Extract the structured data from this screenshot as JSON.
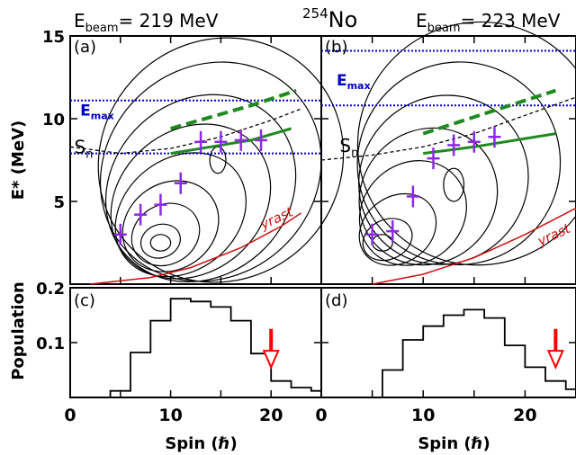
{
  "figure": {
    "title_sup": "254",
    "title_main": "No",
    "beam_left": {
      "prefix": "E",
      "sub": "beam",
      "value": "= 219 MeV"
    },
    "beam_right": {
      "prefix": "E",
      "sub": "beam",
      "value": "= 223 MeV"
    }
  },
  "colors": {
    "contour": "#000000",
    "cross": "#8a2be2",
    "green": "#1f8a1f",
    "blue": "#0000cc",
    "yrast": "#cc1111",
    "arrow": "#ff0000"
  },
  "chart_data": [
    {
      "panel": "(a)",
      "type": "contour",
      "ylabel": "E* (MeV)",
      "xlim": [
        0,
        25
      ],
      "ylim": [
        0,
        15
      ],
      "yticks": [
        "5",
        "10",
        "15"
      ],
      "emax_label": "E",
      "emax_sub": "max",
      "sn_label": "S",
      "sn_sub": "n",
      "yrast_label": "yrast",
      "emax_lines": [
        11.1,
        7.9
      ],
      "points": [
        [
          5,
          3.0
        ],
        [
          7,
          4.2
        ],
        [
          9,
          4.8
        ],
        [
          11,
          6.1
        ],
        [
          13,
          8.6
        ],
        [
          15,
          8.6
        ],
        [
          17,
          8.7
        ],
        [
          19,
          8.7
        ]
      ],
      "sn_curve": [
        [
          0,
          8.3
        ],
        [
          5,
          7.9
        ],
        [
          10,
          8.2
        ],
        [
          15,
          8.9
        ],
        [
          20,
          9.9
        ],
        [
          23,
          10.6
        ]
      ],
      "yrast_curve": [
        [
          2,
          0
        ],
        [
          8,
          0.4
        ],
        [
          12,
          1.0
        ],
        [
          17,
          2.2
        ],
        [
          21,
          3.5
        ],
        [
          23,
          4.3
        ]
      ],
      "green_solid": [
        [
          10,
          7.9
        ],
        [
          14,
          8.3
        ],
        [
          18,
          8.7
        ],
        [
          22,
          9.4
        ]
      ],
      "green_dashed": [
        [
          10,
          9.4
        ],
        [
          14,
          10.1
        ],
        [
          18,
          10.8
        ],
        [
          22.5,
          11.7
        ]
      ]
    },
    {
      "panel": "(b)",
      "type": "contour",
      "xlim": [
        0,
        25
      ],
      "ylim": [
        0,
        15
      ],
      "emax_label": "E",
      "emax_sub": "max",
      "sn_label": "S",
      "sn_sub": "n",
      "yrast_label": "yrast",
      "emax_lines": [
        14.1,
        10.8
      ],
      "points": [
        [
          5,
          3.0
        ],
        [
          7,
          3.2
        ],
        [
          9,
          5.3
        ],
        [
          11,
          7.6
        ],
        [
          13,
          8.4
        ],
        [
          15,
          8.6
        ],
        [
          17,
          8.9
        ]
      ],
      "sn_curve": [
        [
          0,
          7.5
        ],
        [
          5,
          7.8
        ],
        [
          10,
          8.3
        ],
        [
          15,
          9.1
        ],
        [
          20,
          10.2
        ],
        [
          25,
          11.3
        ]
      ],
      "yrast_curve": [
        [
          5,
          0
        ],
        [
          10,
          0.6
        ],
        [
          15,
          1.6
        ],
        [
          20,
          3.0
        ],
        [
          25,
          4.6
        ]
      ],
      "green_solid": [
        [
          10,
          7.9
        ],
        [
          15,
          8.3
        ],
        [
          20,
          8.8
        ],
        [
          23,
          9.1
        ]
      ],
      "green_dashed": [
        [
          10,
          9.1
        ],
        [
          14,
          9.9
        ],
        [
          18,
          10.7
        ],
        [
          23,
          11.7
        ]
      ]
    },
    {
      "panel": "(c)",
      "type": "bar",
      "ylabel": "Population",
      "xlabel": "Spin (ℏ)",
      "xlim": [
        0,
        25
      ],
      "ylim": [
        0,
        0.2
      ],
      "yticks": [
        "0.1",
        "0.2"
      ],
      "xticks": [
        "0",
        "10",
        "20"
      ],
      "bin_edges": [
        0,
        2,
        4,
        6,
        8,
        10,
        12,
        14,
        16,
        18,
        20,
        22,
        24,
        26
      ],
      "values": [
        0.0,
        0.0,
        0.012,
        0.082,
        0.14,
        0.18,
        0.175,
        0.165,
        0.14,
        0.08,
        0.03,
        0.018,
        0.012
      ],
      "arrow_at": 20
    },
    {
      "panel": "(d)",
      "type": "bar",
      "xlabel": "Spin (ℏ)",
      "xlim": [
        0,
        25
      ],
      "ylim": [
        0,
        0.2
      ],
      "xticks": [
        "0",
        "10",
        "20"
      ],
      "bin_edges": [
        0,
        2,
        4,
        6,
        8,
        10,
        12,
        14,
        16,
        18,
        20,
        22,
        24,
        26
      ],
      "values": [
        0.0,
        0.0,
        0.0,
        0.05,
        0.105,
        0.13,
        0.15,
        0.16,
        0.145,
        0.095,
        0.055,
        0.03,
        0.015
      ],
      "arrow_at": 23
    }
  ]
}
